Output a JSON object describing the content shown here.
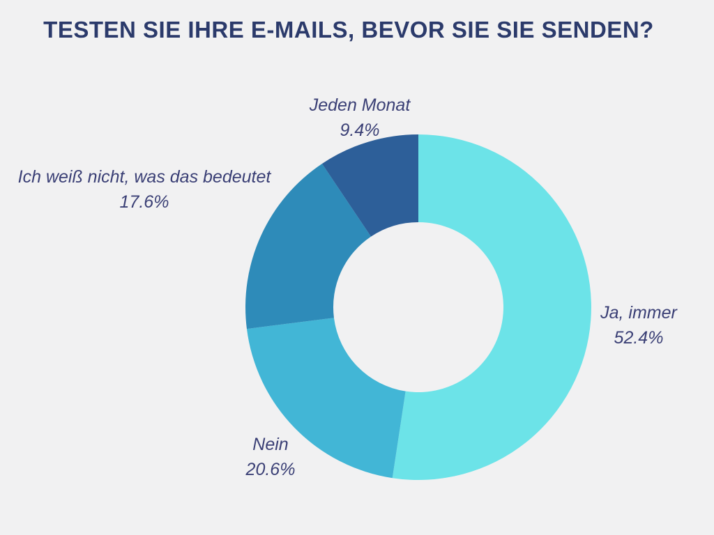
{
  "page": {
    "background": "#F1F1F2"
  },
  "chart_data": {
    "type": "pie",
    "subtype": "donut",
    "title": "TESTEN SIE IHRE E-MAILS, BEVOR SIE SIE SENDEN?",
    "title_color": "#2B3A6B",
    "label_color": "#3A3F75",
    "background": "#F1F1F2",
    "legend_position": "none",
    "grid": false,
    "direction": "clockwise",
    "start_angle_deg": 0,
    "inner_radius_ratio": 0.492,
    "segments": [
      {
        "label": "Ja, immer",
        "value": 52.4,
        "pct_label": "52.4%",
        "color": "#6CE3E8"
      },
      {
        "label": "Nein",
        "value": 20.6,
        "pct_label": "20.6%",
        "color": "#42B6D6"
      },
      {
        "label": "Ich weiß nicht, was das bedeutet",
        "value": 17.6,
        "pct_label": "17.6%",
        "color": "#2E8BB9"
      },
      {
        "label": "Jeden Monat",
        "value": 9.4,
        "pct_label": "9.4%",
        "color": "#2D5F99"
      }
    ]
  }
}
